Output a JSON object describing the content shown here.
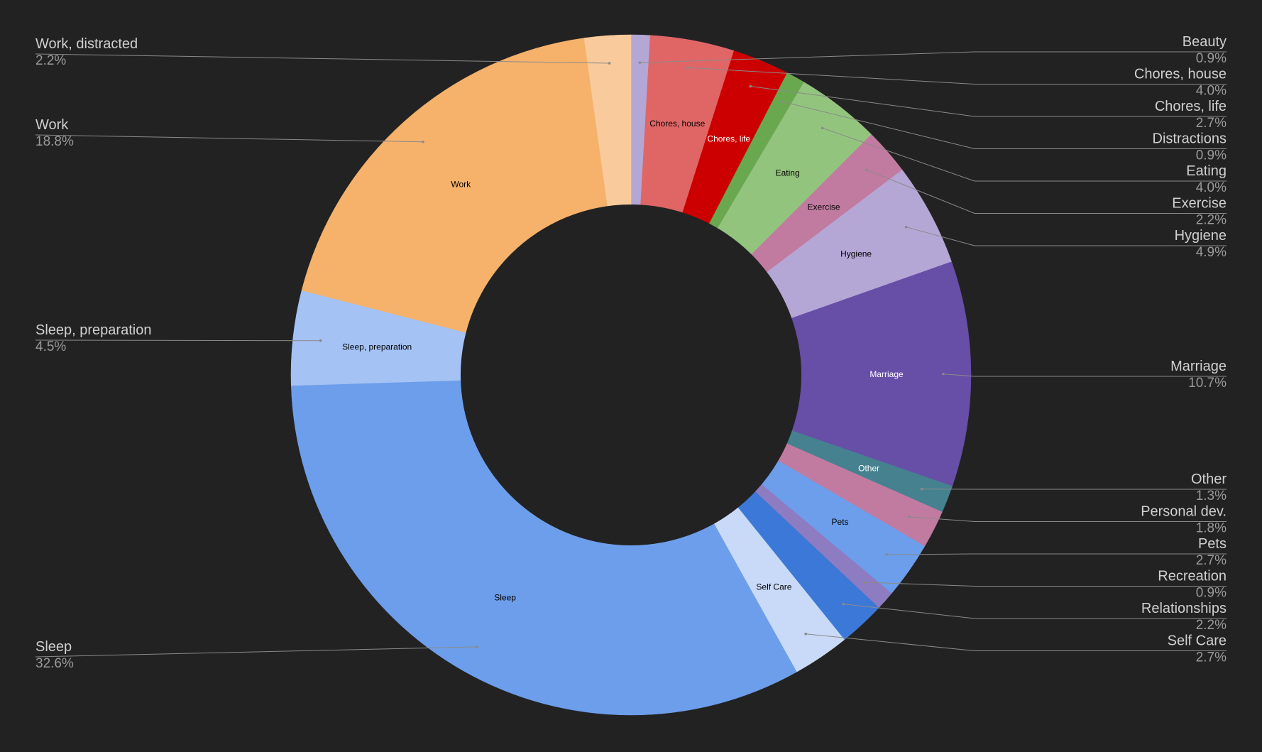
{
  "chart_data": {
    "type": "pie",
    "donut": true,
    "title": "",
    "slices": [
      {
        "label": "Beauty",
        "value": 0.9,
        "pct_text": "0.9%",
        "color": "#b4a7d6",
        "side": "right",
        "inner": "",
        "inner_text_color": "#000000"
      },
      {
        "label": "Chores, house",
        "value": 4.0,
        "pct_text": "4.0%",
        "color": "#e06666",
        "side": "right",
        "inner": "Chores, house",
        "inner_text_color": "#000000"
      },
      {
        "label": "Chores, life",
        "value": 2.7,
        "pct_text": "2.7%",
        "color": "#cc0000",
        "side": "right",
        "inner": "Chores, life",
        "inner_text_color": "#ffffff"
      },
      {
        "label": "Distractions",
        "value": 0.9,
        "pct_text": "0.9%",
        "color": "#6aa84f",
        "side": "right",
        "inner": "",
        "inner_text_color": "#000000"
      },
      {
        "label": "Eating",
        "value": 4.0,
        "pct_text": "4.0%",
        "color": "#93c47d",
        "side": "right",
        "inner": "Eating",
        "inner_text_color": "#000000"
      },
      {
        "label": "Exercise",
        "value": 2.2,
        "pct_text": "2.2%",
        "color": "#c27ba0",
        "side": "right",
        "inner": "Exercise",
        "inner_text_color": "#000000"
      },
      {
        "label": "Hygiene",
        "value": 4.9,
        "pct_text": "4.9%",
        "color": "#b4a7d6",
        "side": "right",
        "inner": "Hygiene",
        "inner_text_color": "#000000"
      },
      {
        "label": "Marriage",
        "value": 10.7,
        "pct_text": "10.7%",
        "color": "#674ea7",
        "side": "right",
        "inner": "Marriage",
        "inner_text_color": "#ffffff"
      },
      {
        "label": "Other",
        "value": 1.3,
        "pct_text": "1.3%",
        "color": "#45818e",
        "side": "right",
        "inner": "Other",
        "inner_text_color": "#ffffff"
      },
      {
        "label": "Personal dev.",
        "value": 1.8,
        "pct_text": "1.8%",
        "color": "#c27ba0",
        "side": "right",
        "inner": "",
        "inner_text_color": "#000000"
      },
      {
        "label": "Pets",
        "value": 2.7,
        "pct_text": "2.7%",
        "color": "#6d9eeb",
        "side": "right",
        "inner": "Pets",
        "inner_text_color": "#000000"
      },
      {
        "label": "Recreation",
        "value": 0.9,
        "pct_text": "0.9%",
        "color": "#8e7cc3",
        "side": "right",
        "inner": "",
        "inner_text_color": "#000000"
      },
      {
        "label": "Relationships",
        "value": 2.2,
        "pct_text": "2.2%",
        "color": "#3c78d8",
        "side": "right",
        "inner": "",
        "inner_text_color": "#000000"
      },
      {
        "label": "Self Care",
        "value": 2.7,
        "pct_text": "2.7%",
        "color": "#c9daf8",
        "side": "right",
        "inner": "Self Care",
        "inner_text_color": "#000000"
      },
      {
        "label": "Sleep",
        "value": 32.6,
        "pct_text": "32.6%",
        "color": "#6d9eeb",
        "side": "left",
        "inner": "Sleep",
        "inner_text_color": "#000000"
      },
      {
        "label": "Sleep, preparation",
        "value": 4.5,
        "pct_text": "4.5%",
        "color": "#a4c2f4",
        "side": "left",
        "inner": "Sleep, preparation",
        "inner_text_color": "#000000"
      },
      {
        "label": "Work",
        "value": 18.8,
        "pct_text": "18.8%",
        "color": "#f6b26b",
        "side": "left",
        "inner": "Work",
        "inner_text_color": "#000000"
      },
      {
        "label": "Work, distracted",
        "value": 2.2,
        "pct_text": "2.2%",
        "color": "#f9cb9c",
        "side": "left",
        "inner": "",
        "inner_text_color": "#000000"
      }
    ],
    "legend": "outside with leader lines"
  }
}
